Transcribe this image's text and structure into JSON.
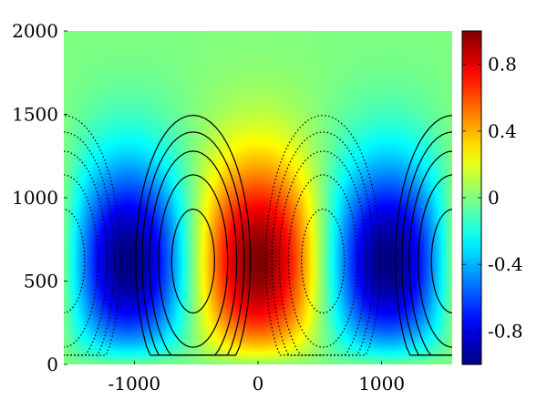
{
  "chart_data": {
    "type": "heatmap",
    "title": "",
    "xlabel": "",
    "ylabel": "",
    "xlim": [
      -1570,
      1570
    ],
    "ylim": [
      0,
      2000
    ],
    "x_ticks": [
      {
        "value": -1000,
        "label": "-1000"
      },
      {
        "value": 0,
        "label": "0"
      },
      {
        "value": 1000,
        "label": "1000"
      }
    ],
    "y_ticks": [
      {
        "value": 0,
        "label": "0"
      },
      {
        "value": 500,
        "label": "500"
      },
      {
        "value": 1000,
        "label": "1000"
      },
      {
        "value": 1500,
        "label": "1500"
      },
      {
        "value": 2000,
        "label": "2000"
      }
    ],
    "colorbar": {
      "colormap": "jet",
      "range": [
        -1,
        1
      ],
      "ticks": [
        {
          "value": 0.8,
          "label": "0.8"
        },
        {
          "value": 0.4,
          "label": "0.4"
        },
        {
          "value": 0,
          "label": "0"
        },
        {
          "value": -0.4,
          "label": "-0.4"
        },
        {
          "value": -0.8,
          "label": "-0.8"
        }
      ]
    },
    "field": {
      "description_of_pattern": "periodic in x",
      "wavelength_x": 2100,
      "max_at_x": 0,
      "min_at_x": [
        -1050,
        1050
      ],
      "core_height": 620,
      "vertical_extent": 1550
    },
    "contour_levels": {
      "positive_solid": [
        0.1,
        0.3,
        0.5,
        0.7,
        0.9
      ],
      "negative_dotted": [
        -0.1,
        -0.3,
        -0.5,
        -0.7,
        -0.9
      ],
      "solid_centers_x": [
        -525,
        1575
      ],
      "dotted_centers_x": [
        -1575,
        525
      ]
    }
  }
}
